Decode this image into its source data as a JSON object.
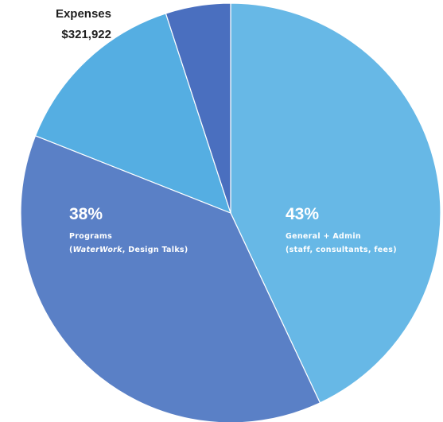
{
  "chart_data": {
    "type": "pie",
    "title": "Expenses",
    "total": "$321,922",
    "slices": [
      {
        "label": "General + Admin",
        "sublabel": "(staff, consultants, fees)",
        "value": 43,
        "display": "43%",
        "color": "#67b8e6"
      },
      {
        "label": "Programs",
        "sublabel_parts": [
          "(",
          "WaterWork",
          ", Design Talks)"
        ],
        "value": 38,
        "display": "38%",
        "color": "#5a80c6"
      },
      {
        "label": "",
        "value": 14,
        "display": "",
        "color": "#55aee2"
      },
      {
        "label": "",
        "value": 5,
        "display": "",
        "color": "#4a6fbf"
      }
    ]
  }
}
